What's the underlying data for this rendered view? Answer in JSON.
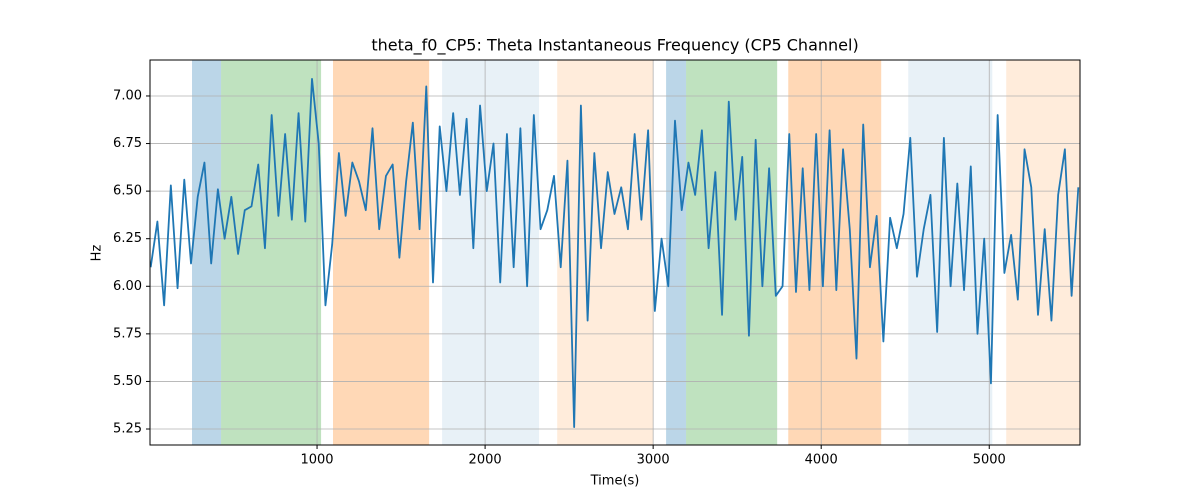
{
  "chart_data": {
    "type": "line",
    "title": "theta_f0_CP5: Theta Instantaneous Frequency (CP5 Channel)",
    "xlabel": "Time(s)",
    "ylabel": "Hz",
    "xlim": [
      6,
      5540
    ],
    "ylim": [
      5.166,
      7.189
    ],
    "xticks": [
      1000,
      2000,
      3000,
      4000,
      5000
    ],
    "yticks": [
      5.25,
      {
        "value": 5.5,
        "label": "5.50"
      },
      5.75,
      {
        "value": 6.0,
        "label": "6.00"
      },
      6.25,
      {
        "value": 6.5,
        "label": "6.50"
      },
      6.75,
      {
        "value": 7.0,
        "label": "7.00"
      }
    ],
    "grid": true,
    "spans": [
      {
        "start": 256,
        "end": 429,
        "color": "#1f77b4",
        "alpha": 0.3
      },
      {
        "start": 429,
        "end": 1024,
        "color": "#2ca02c",
        "alpha": 0.3
      },
      {
        "start": 1095,
        "end": 1667,
        "color": "#ff7f0e",
        "alpha": 0.3
      },
      {
        "start": 1744,
        "end": 2321,
        "color": "#1f77b4",
        "alpha": 0.1
      },
      {
        "start": 2429,
        "end": 3000,
        "color": "#ff7f0e",
        "alpha": 0.15
      },
      {
        "start": 3077,
        "end": 3196,
        "color": "#1f77b4",
        "alpha": 0.3
      },
      {
        "start": 3196,
        "end": 3738,
        "color": "#2ca02c",
        "alpha": 0.3
      },
      {
        "start": 3804,
        "end": 4357,
        "color": "#ff7f0e",
        "alpha": 0.3
      },
      {
        "start": 4518,
        "end": 5018,
        "color": "#1f77b4",
        "alpha": 0.1
      },
      {
        "start": 5101,
        "end": 5540,
        "color": "#ff7f0e",
        "alpha": 0.15
      }
    ],
    "series": [
      {
        "color": "#1f77b4",
        "x": [
          10,
          50,
          90,
          130,
          170,
          210,
          250,
          290,
          330,
          370,
          410,
          450,
          490,
          530,
          570,
          610,
          650,
          690,
          730,
          770,
          810,
          850,
          890,
          930,
          970,
          1010,
          1050,
          1090,
          1130,
          1170,
          1210,
          1250,
          1290,
          1330,
          1370,
          1410,
          1450,
          1490,
          1530,
          1570,
          1610,
          1650,
          1690,
          1730,
          1770,
          1810,
          1850,
          1890,
          1930,
          1970,
          2010,
          2050,
          2090,
          2130,
          2170,
          2210,
          2250,
          2290,
          2330,
          2370,
          2410,
          2450,
          2490,
          2530,
          2570,
          2610,
          2650,
          2690,
          2730,
          2770,
          2810,
          2850,
          2890,
          2930,
          2970,
          3010,
          3050,
          3090,
          3130,
          3170,
          3210,
          3250,
          3290,
          3330,
          3370,
          3410,
          3450,
          3490,
          3530,
          3570,
          3610,
          3650,
          3690,
          3730,
          3770,
          3810,
          3850,
          3890,
          3930,
          3970,
          4010,
          4050,
          4090,
          4130,
          4170,
          4210,
          4250,
          4290,
          4330,
          4370,
          4410,
          4450,
          4490,
          4530,
          4570,
          4610,
          4650,
          4690,
          4730,
          4770,
          4810,
          4850,
          4890,
          4930,
          4970,
          5010,
          5050,
          5090,
          5130,
          5170,
          5210,
          5250,
          5290,
          5330,
          5370,
          5410,
          5450,
          5490,
          5530
        ],
        "values": [
          6.1,
          6.34,
          5.9,
          6.53,
          5.99,
          6.56,
          6.12,
          6.47,
          6.65,
          6.12,
          6.51,
          6.25,
          6.47,
          6.17,
          6.4,
          6.42,
          6.64,
          6.2,
          6.9,
          6.37,
          6.8,
          6.35,
          6.91,
          6.34,
          7.09,
          6.75,
          5.9,
          6.22,
          6.7,
          6.37,
          6.65,
          6.55,
          6.4,
          6.83,
          6.3,
          6.58,
          6.64,
          6.15,
          6.55,
          6.86,
          6.3,
          7.05,
          6.02,
          6.84,
          6.5,
          6.91,
          6.48,
          6.88,
          6.2,
          6.95,
          6.5,
          6.75,
          6.02,
          6.8,
          6.1,
          6.83,
          6.0,
          6.9,
          6.3,
          6.4,
          6.58,
          6.1,
          6.66,
          5.26,
          6.95,
          5.82,
          6.7,
          6.2,
          6.6,
          6.38,
          6.52,
          6.3,
          6.8,
          6.35,
          6.82,
          5.87,
          6.25,
          6.0,
          6.87,
          6.4,
          6.65,
          6.48,
          6.82,
          6.2,
          6.6,
          5.85,
          6.97,
          6.35,
          6.68,
          5.74,
          6.77,
          6.0,
          6.62,
          5.95,
          6.0,
          6.8,
          5.97,
          6.62,
          5.98,
          6.8,
          6.0,
          6.82,
          5.98,
          6.72,
          6.3,
          5.62,
          6.85,
          6.1,
          6.37,
          5.71,
          6.36,
          6.2,
          6.38,
          6.78,
          6.05,
          6.3,
          6.48,
          5.76,
          6.78,
          6.0,
          6.54,
          5.98,
          6.63,
          5.75,
          6.25,
          5.49,
          6.9,
          6.07,
          6.27,
          5.93,
          6.72,
          6.52,
          5.85,
          6.3,
          5.82,
          6.48,
          6.72,
          5.95,
          6.52
        ]
      }
    ]
  }
}
